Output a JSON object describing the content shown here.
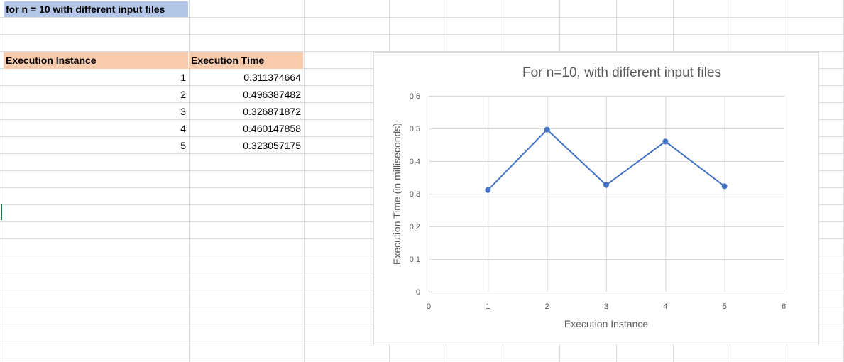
{
  "sheet": {
    "title": "for n = 10 with different input files",
    "table": {
      "headers": [
        "Execution Instance",
        "Execution Time"
      ],
      "rows": [
        [
          "1",
          "0.311374664"
        ],
        [
          "2",
          "0.496387482"
        ],
        [
          "3",
          "0.326871872"
        ],
        [
          "4",
          "0.460147858"
        ],
        [
          "5",
          "0.323057175"
        ]
      ]
    }
  },
  "colors": {
    "title_fill": "#b4c6e7",
    "header_fill": "#f8cbad",
    "series_line": "#4472c4",
    "gridline": "#d9d9d9"
  },
  "chart_data": {
    "type": "scatter",
    "title": "For n=10, with different input files",
    "xlabel": "Execution Instance",
    "ylabel": "Execution Time (in milliseconds)",
    "xlim": [
      0,
      6
    ],
    "ylim": [
      0,
      0.6
    ],
    "xticks": [
      "0",
      "1",
      "2",
      "3",
      "4",
      "5",
      "6"
    ],
    "yticks": [
      "0",
      "0.1",
      "0.2",
      "0.3",
      "0.4",
      "0.5",
      "0.6"
    ],
    "grid": true,
    "series": [
      {
        "name": "Execution Time",
        "x": [
          1,
          2,
          3,
          4,
          5
        ],
        "y": [
          0.311374664,
          0.496387482,
          0.326871872,
          0.460147858,
          0.323057175
        ]
      }
    ]
  }
}
